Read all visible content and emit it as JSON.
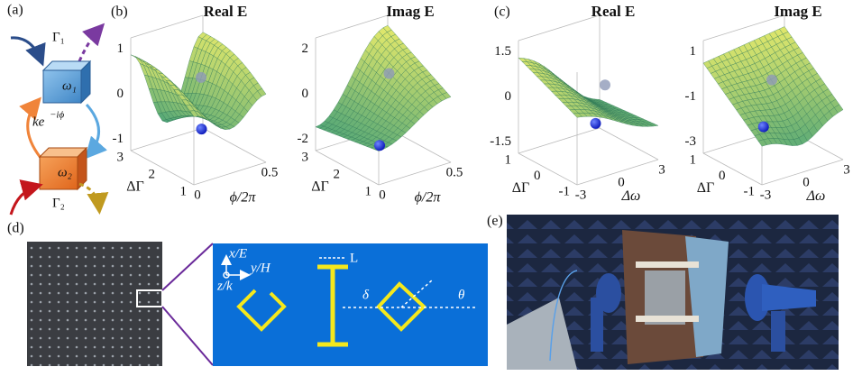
{
  "panel_a": {
    "label": "(a)",
    "gamma1": "Γ₁",
    "omega1": "ω₁",
    "coupling": "ke",
    "coupling_exp": "−iϕ",
    "omega2": "ω₂",
    "gamma2": "Γ₂"
  },
  "panel_b": {
    "label": "(b)",
    "plots": [
      {
        "title": "Real E",
        "zticks": [
          "1",
          "0",
          "-1"
        ],
        "yticks": [
          "3",
          "2",
          "1"
        ],
        "xticks": [
          "0",
          "0.5"
        ],
        "ylabel": "ΔΓ",
        "xlabel": "ϕ/2π"
      },
      {
        "title": "Imag E",
        "zticks": [
          "2",
          "0",
          "-2"
        ],
        "yticks": [
          "3",
          "2",
          "1"
        ],
        "xticks": [
          "0",
          "0.5"
        ],
        "ylabel": "ΔΓ",
        "xlabel": "ϕ/2π"
      }
    ]
  },
  "panel_c": {
    "label": "(c)",
    "plots": [
      {
        "title": "Real E",
        "zticks": [
          "1.5",
          "0",
          "-1.5"
        ],
        "yticks": [
          "1",
          "0",
          "-1"
        ],
        "xticks": [
          "-3",
          "0",
          "3"
        ],
        "ylabel": "ΔΓ",
        "xlabel": "Δω"
      },
      {
        "title": "Imag E",
        "zticks": [
          "1",
          "-1",
          "-3"
        ],
        "yticks": [
          "1",
          "0",
          "-1"
        ],
        "xticks": [
          "-3",
          "0",
          "3"
        ],
        "ylabel": "ΔΓ",
        "xlabel": "Δω"
      }
    ]
  },
  "panel_d": {
    "label": "(d)",
    "axis_x": "x/E",
    "axis_y": "y/H",
    "axis_z": "z/k",
    "length": "L",
    "delta": "δ",
    "theta": "θ"
  },
  "panel_e": {
    "label": "(e)"
  }
}
